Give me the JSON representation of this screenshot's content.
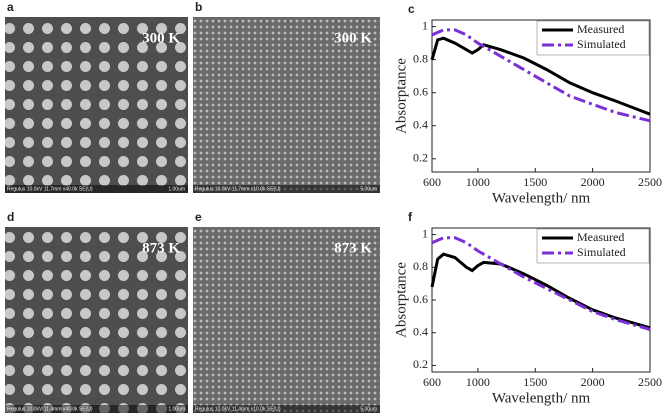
{
  "images": [
    {
      "panel": "a",
      "temperature": "300 K",
      "info": "Regulus 10.0kV 11.7mm x40.0k SE(U)",
      "scale": "1.00um"
    },
    {
      "panel": "b",
      "temperature": "300 K",
      "info": "Regulus 10.0kV 11.7mm x10.0k SE(U)",
      "scale": "5.00um"
    },
    {
      "panel": "d",
      "temperature": "873 K",
      "info": "Regulus 10.0kV 11.4mm x40.0k SE(U)",
      "scale": "1.00um"
    },
    {
      "panel": "e",
      "temperature": "873 K",
      "info": "Regulus 10.0kV 11.4mm x10.0k SE(U)",
      "scale": "5.00um"
    }
  ],
  "chart_data": [
    {
      "type": "line",
      "label": "c",
      "x_label": "Wavelength/ nm",
      "y_label": "Absorptance",
      "xlim": [
        600,
        2500
      ],
      "xticks": [
        600,
        1000,
        1500,
        2000,
        2500
      ],
      "ylim": [
        0.12,
        1.04
      ],
      "yticks": [
        0.2,
        0.4,
        0.6,
        0.8,
        1
      ],
      "legend": "upper right",
      "series": [
        {
          "name": "Measured",
          "color": "#000000",
          "style": "solid",
          "x": [
            600,
            650,
            700,
            800,
            900,
            950,
            1000,
            1050,
            1100,
            1200,
            1400,
            1600,
            1800,
            2000,
            2200,
            2500
          ],
          "values": [
            0.8,
            0.92,
            0.93,
            0.9,
            0.86,
            0.84,
            0.86,
            0.89,
            0.88,
            0.86,
            0.81,
            0.74,
            0.66,
            0.6,
            0.55,
            0.47
          ]
        },
        {
          "name": "Simulated",
          "color": "#7b2fd6",
          "style": "dashdot",
          "x": [
            600,
            700,
            800,
            900,
            1000,
            1100,
            1200,
            1400,
            1600,
            1800,
            2000,
            2200,
            2500
          ],
          "values": [
            0.95,
            0.98,
            0.98,
            0.95,
            0.9,
            0.86,
            0.82,
            0.74,
            0.66,
            0.58,
            0.53,
            0.48,
            0.43
          ]
        }
      ]
    },
    {
      "type": "line",
      "label": "f",
      "x_label": "Wavelength/ nm",
      "y_label": "Absorptance",
      "xlim": [
        600,
        2500
      ],
      "xticks": [
        600,
        1000,
        1500,
        2000,
        2500
      ],
      "ylim": [
        0.16,
        1.04
      ],
      "yticks": [
        0.2,
        0.4,
        0.6,
        0.8,
        1
      ],
      "legend": "upper right",
      "series": [
        {
          "name": "Measured",
          "color": "#000000",
          "style": "solid",
          "x": [
            600,
            650,
            700,
            800,
            900,
            950,
            1000,
            1050,
            1200,
            1400,
            1600,
            1800,
            2000,
            2200,
            2500
          ],
          "values": [
            0.68,
            0.85,
            0.88,
            0.86,
            0.8,
            0.78,
            0.81,
            0.83,
            0.82,
            0.76,
            0.69,
            0.61,
            0.54,
            0.49,
            0.43
          ]
        },
        {
          "name": "Simulated",
          "color": "#7b2fd6",
          "style": "dashdot",
          "x": [
            600,
            700,
            800,
            900,
            1000,
            1200,
            1400,
            1600,
            1800,
            2000,
            2200,
            2500
          ],
          "values": [
            0.95,
            0.98,
            0.98,
            0.95,
            0.9,
            0.82,
            0.74,
            0.67,
            0.6,
            0.53,
            0.48,
            0.42
          ]
        }
      ]
    }
  ]
}
